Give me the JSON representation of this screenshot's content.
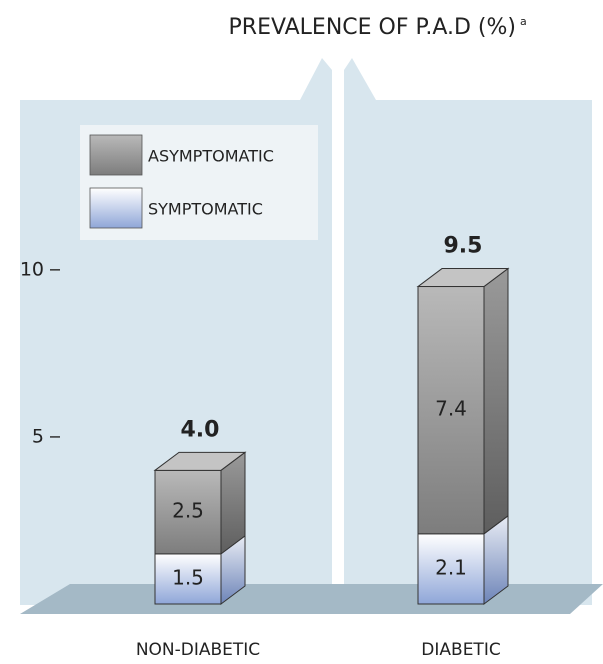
{
  "chart_data": {
    "type": "stacked-bar-3d",
    "title": "PREVALENCE OF P.A.D (%)",
    "title_note": "a",
    "categories": [
      "NON-DIABETIC",
      "DIABETIC"
    ],
    "series": [
      {
        "name": "SYMPTOMATIC",
        "color": "#8fa6d8",
        "values": [
          1.5,
          2.1
        ]
      },
      {
        "name": "ASYMPTOMATIC",
        "color": "#8a8a8a",
        "values": [
          2.5,
          7.4
        ]
      }
    ],
    "totals": {
      "values": [
        4.0,
        9.5
      ],
      "value_labels": [
        "4.0",
        "9.5"
      ]
    },
    "ylim": [
      0,
      12
    ],
    "yticks": [
      5,
      10
    ]
  }
}
